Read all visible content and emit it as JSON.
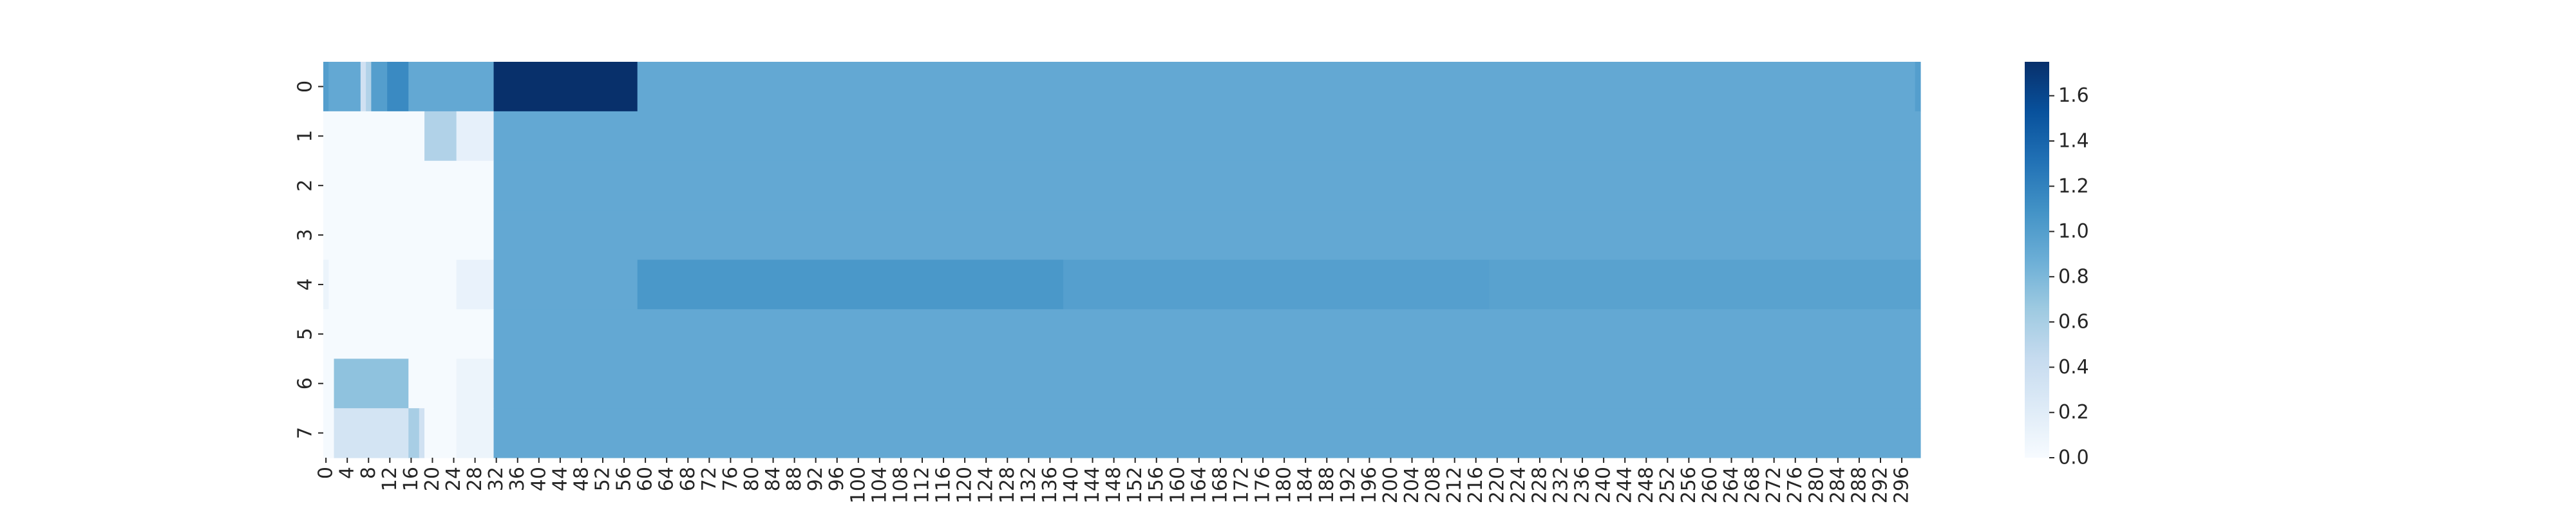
{
  "chart_data": {
    "type": "heatmap",
    "title": "",
    "xlabel": "",
    "ylabel": "",
    "colormap": "Blues",
    "vmin": 0.0,
    "vmax": 1.75,
    "n_rows": 8,
    "n_cols": 300,
    "y_ticks": [
      "0",
      "1",
      "2",
      "3",
      "4",
      "5",
      "6",
      "7"
    ],
    "x_ticks": [
      "0",
      "4",
      "8",
      "12",
      "16",
      "20",
      "24",
      "28",
      "32",
      "36",
      "40",
      "44",
      "48",
      "52",
      "56",
      "60",
      "64",
      "68",
      "72",
      "76",
      "80",
      "84",
      "88",
      "92",
      "96",
      "100",
      "104",
      "108",
      "112",
      "116",
      "120",
      "124",
      "128",
      "132",
      "136",
      "140",
      "144",
      "148",
      "152",
      "156",
      "160",
      "164",
      "168",
      "172",
      "176",
      "180",
      "184",
      "188",
      "192",
      "196",
      "200",
      "204",
      "208",
      "212",
      "216",
      "220",
      "224",
      "228",
      "232",
      "236",
      "240",
      "244",
      "248",
      "252",
      "256",
      "260",
      "264",
      "268",
      "272",
      "276",
      "280",
      "284",
      "288",
      "292",
      "296"
    ],
    "colorbar_ticks": [
      "0.0",
      "0.2",
      "0.4",
      "0.6",
      "0.8",
      "1.0",
      "1.2",
      "1.4",
      "1.6"
    ],
    "colorbar_values": [
      0.0,
      0.2,
      0.4,
      0.6,
      0.8,
      1.0,
      1.2,
      1.4,
      1.6
    ],
    "rows": [
      {
        "row": 0,
        "default": 0.92,
        "segments": [
          [
            0,
            1,
            1.0
          ],
          [
            1,
            7,
            0.92
          ],
          [
            7,
            8,
            0.35
          ],
          [
            8,
            9,
            0.55
          ],
          [
            9,
            12,
            1.0
          ],
          [
            12,
            16,
            1.15
          ],
          [
            16,
            16,
            1.15
          ],
          [
            32,
            59,
            1.75
          ],
          [
            299,
            300,
            1.0
          ]
        ]
      },
      {
        "row": 1,
        "default": 0.92,
        "segments": [
          [
            0,
            19,
            0.02
          ],
          [
            19,
            25,
            0.55
          ],
          [
            25,
            32,
            0.15
          ]
        ]
      },
      {
        "row": 2,
        "default": 0.92,
        "segments": [
          [
            0,
            32,
            0.02
          ]
        ]
      },
      {
        "row": 3,
        "default": 0.92,
        "segments": [
          [
            0,
            32,
            0.02
          ]
        ]
      },
      {
        "row": 4,
        "default": 0.92,
        "segments": [
          [
            0,
            1,
            0.1
          ],
          [
            1,
            25,
            0.02
          ],
          [
            25,
            32,
            0.12
          ],
          [
            59,
            139,
            1.05
          ],
          [
            139,
            219,
            0.99
          ],
          [
            219,
            300,
            0.97
          ]
        ]
      },
      {
        "row": 5,
        "default": 0.92,
        "segments": [
          [
            0,
            32,
            0.02
          ]
        ]
      },
      {
        "row": 6,
        "default": 0.92,
        "segments": [
          [
            0,
            2,
            0.02
          ],
          [
            2,
            16,
            0.72
          ],
          [
            16,
            25,
            0.02
          ],
          [
            25,
            32,
            0.1
          ]
        ]
      },
      {
        "row": 7,
        "default": 0.92,
        "segments": [
          [
            0,
            2,
            0.02
          ],
          [
            2,
            16,
            0.32
          ],
          [
            16,
            18,
            0.6
          ],
          [
            18,
            19,
            0.35
          ],
          [
            19,
            25,
            0.02
          ],
          [
            25,
            32,
            0.1
          ]
        ]
      }
    ]
  }
}
